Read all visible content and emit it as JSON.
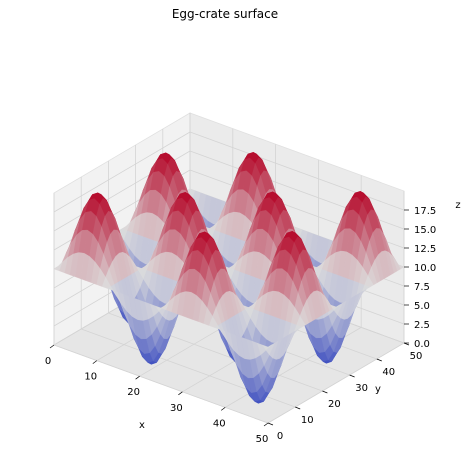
{
  "chart_data": {
    "type": "surface3d",
    "title": "Egg-crate surface",
    "xlabel": "x",
    "ylabel": "y",
    "zlabel": "z",
    "xlim": [
      0,
      50
    ],
    "ylim": [
      0,
      50
    ],
    "zlim": [
      0,
      20
    ],
    "xticks": [
      0,
      10,
      20,
      30,
      40,
      50
    ],
    "yticks": [
      0,
      10,
      20,
      30,
      40,
      50
    ],
    "zticks": [
      0.0,
      2.5,
      5.0,
      7.5,
      10.0,
      12.5,
      15.0,
      17.5
    ],
    "function": "z = 10 + 10*sin(2*pi*x/25)*sin(2*pi*y/25)",
    "grid_resolution": 41,
    "colormap": "coolwarm",
    "colors": {
      "low": "#3b4cc0",
      "mid": "#dddddd",
      "high": "#b40426"
    },
    "grid": true
  }
}
